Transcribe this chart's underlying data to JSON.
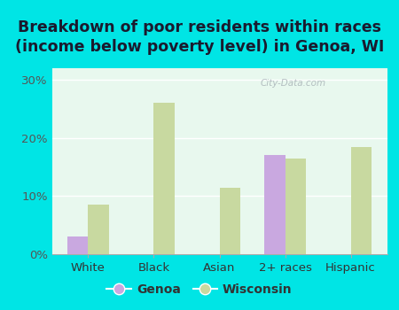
{
  "title": "Breakdown of poor residents within races\n(income below poverty level) in Genoa, WI",
  "categories": [
    "White",
    "Black",
    "Asian",
    "2+ races",
    "Hispanic"
  ],
  "genoa_values": [
    3.0,
    0,
    0,
    17.0,
    0
  ],
  "wisconsin_values": [
    8.5,
    26.0,
    11.5,
    16.5,
    18.5
  ],
  "genoa_color": "#c9a8e0",
  "wisconsin_color": "#c8d9a0",
  "plot_bg_color": "#e8f8ee",
  "outer_bg_color": "#00e5e5",
  "title_color": "#1a1a2e",
  "ylim": [
    0,
    32
  ],
  "yticks": [
    0,
    10,
    20,
    30
  ],
  "ytick_labels": [
    "0%",
    "10%",
    "20%",
    "30%"
  ],
  "bar_width": 0.32,
  "title_fontsize": 12.5,
  "tick_fontsize": 9.5,
  "legend_fontsize": 10,
  "watermark": "City-Data.com"
}
